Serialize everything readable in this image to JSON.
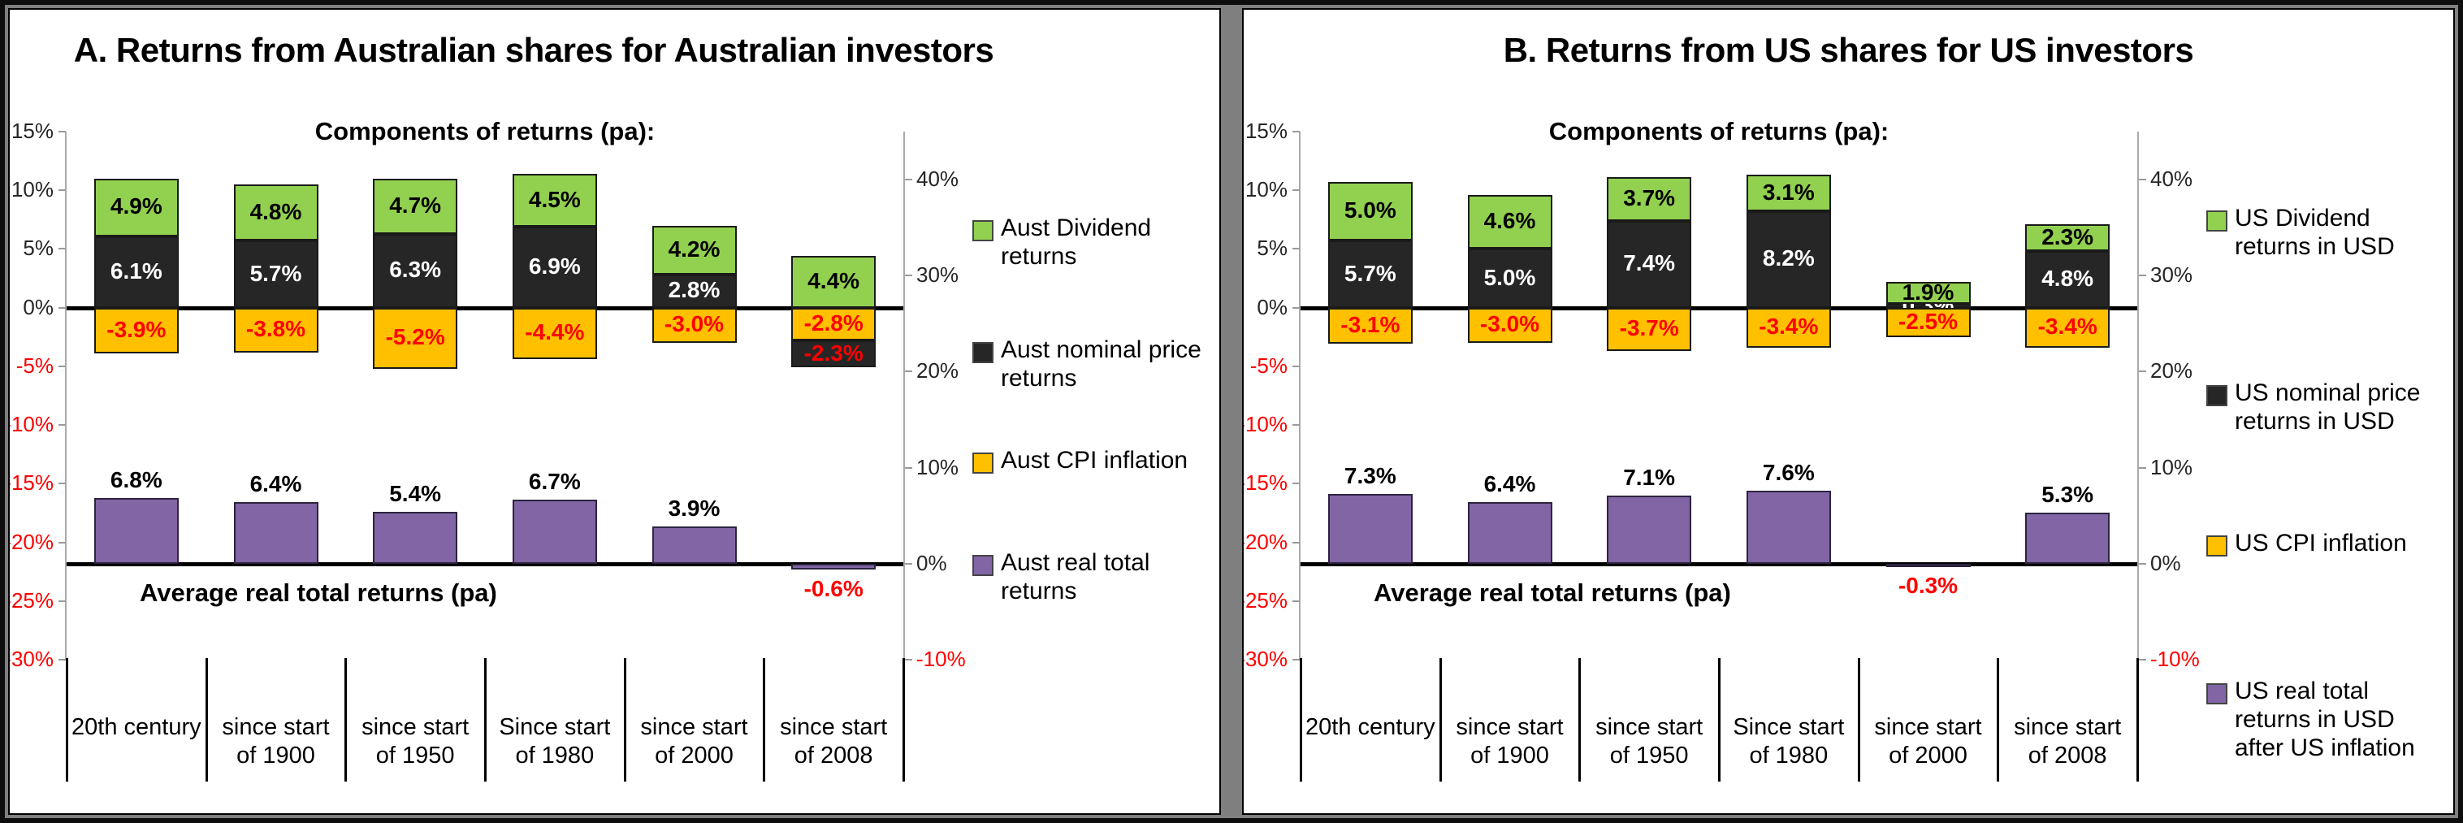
{
  "chart_data": [
    {
      "type": "bar",
      "title": "A. Returns from Australian shares for Australian investors",
      "subtitle": "Components of returns (pa):",
      "inner_label": "Average real total returns (pa)",
      "categories": [
        "20th century",
        "since start of 1900",
        "since start of 1950",
        "Since start of 1980",
        "since start of 2000",
        "since start of 2008"
      ],
      "stacked": true,
      "left_axis": {
        "min": -30,
        "max": 15,
        "ticks": [
          "15%",
          "10%",
          "5%",
          "0%",
          "-5%",
          "-10%",
          "-15%",
          "-20%",
          "-25%",
          "-30%"
        ],
        "tick_values": [
          15,
          10,
          5,
          0,
          -5,
          -10,
          -15,
          -20,
          -25,
          -30
        ]
      },
      "right_axis": {
        "min": -10,
        "max": 45,
        "ticks": [
          "40%",
          "30%",
          "20%",
          "10%",
          "0%",
          "-10%"
        ],
        "tick_values": [
          40,
          30,
          20,
          10,
          0,
          -10
        ]
      },
      "series": [
        {
          "name": "Aust Dividend returns",
          "color": "#92D050",
          "axis": "left",
          "role": "dividend",
          "values": [
            4.9,
            4.8,
            4.7,
            4.5,
            4.2,
            4.4
          ]
        },
        {
          "name": "Aust nominal price returns",
          "color": "#262626",
          "axis": "left",
          "role": "nominal",
          "values": [
            6.1,
            5.7,
            6.3,
            6.9,
            2.8,
            -2.3
          ]
        },
        {
          "name": "Aust CPI inflation",
          "color": "#FFC000",
          "axis": "left",
          "role": "cpi",
          "values": [
            -3.9,
            -3.8,
            -5.2,
            -4.4,
            -3.0,
            -2.8
          ]
        },
        {
          "name": "Aust real total returns",
          "color": "#8165A4",
          "axis": "right",
          "role": "real_total",
          "values": [
            6.8,
            6.4,
            5.4,
            6.7,
            3.9,
            -0.6
          ]
        }
      ],
      "legend_position": "right",
      "grid": false,
      "negative_label_color": "#FF0000"
    },
    {
      "type": "bar",
      "title": "B. Returns from US shares for US investors",
      "subtitle": "Components of returns (pa):",
      "inner_label": "Average real total returns (pa)",
      "categories": [
        "20th century",
        "since start of 1900",
        "since start of 1950",
        "Since start of 1980",
        "since start of 2000",
        "since start of 2008"
      ],
      "stacked": true,
      "left_axis": {
        "min": -30,
        "max": 15,
        "ticks": [
          "15%",
          "10%",
          "5%",
          "0%",
          "-5%",
          "-10%",
          "-15%",
          "-20%",
          "-25%",
          "-30%"
        ],
        "tick_values": [
          15,
          10,
          5,
          0,
          -5,
          -10,
          -15,
          -20,
          -25,
          -30
        ]
      },
      "right_axis": {
        "min": -10,
        "max": 45,
        "ticks": [
          "40%",
          "30%",
          "20%",
          "10%",
          "0%",
          "-10%"
        ],
        "tick_values": [
          40,
          30,
          20,
          10,
          0,
          -10
        ]
      },
      "series": [
        {
          "name": "US Dividend returns in USD",
          "color": "#92D050",
          "axis": "left",
          "role": "dividend",
          "values": [
            5.0,
            4.6,
            3.7,
            3.1,
            1.9,
            2.3
          ]
        },
        {
          "name": "US nominal price returns in USD",
          "color": "#262626",
          "axis": "left",
          "role": "nominal",
          "values": [
            5.7,
            5.0,
            7.4,
            8.2,
            0.3,
            4.8
          ]
        },
        {
          "name": "US CPI inflation",
          "color": "#FFC000",
          "axis": "left",
          "role": "cpi",
          "values": [
            -3.1,
            -3.0,
            -3.7,
            -3.4,
            -2.5,
            -3.4
          ]
        },
        {
          "name": "US real total returns in USD after US inflation",
          "color": "#8165A4",
          "axis": "right",
          "role": "real_total",
          "values": [
            7.3,
            6.4,
            7.1,
            7.6,
            -0.3,
            5.3
          ]
        }
      ],
      "legend_position": "right",
      "grid": false,
      "negative_label_color": "#FF0000"
    }
  ]
}
